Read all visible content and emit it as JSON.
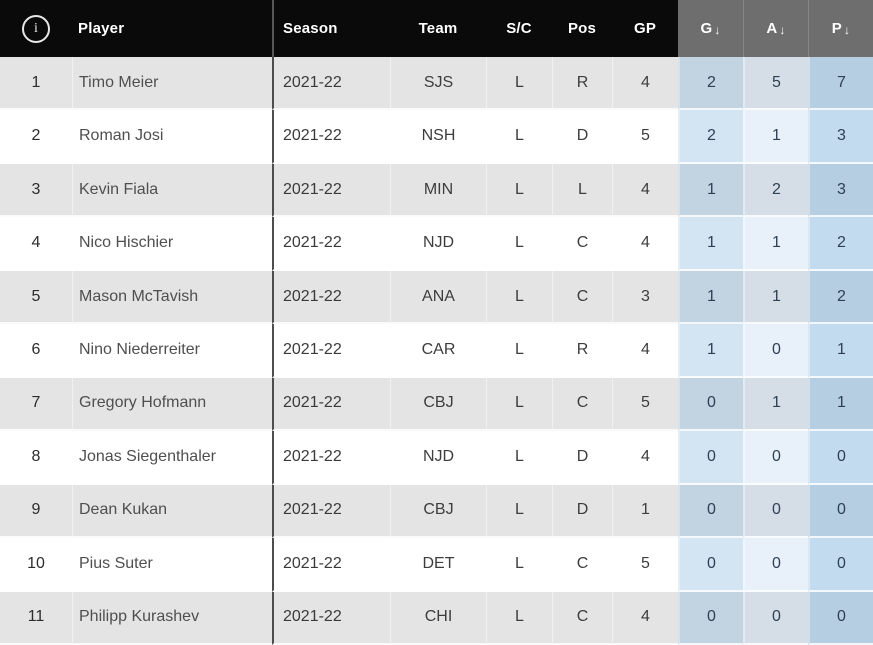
{
  "table": {
    "sort_arrow": "↓",
    "columns": [
      {
        "key": "rank",
        "label": ""
      },
      {
        "key": "player",
        "label": "Player"
      },
      {
        "key": "season",
        "label": "Season"
      },
      {
        "key": "team",
        "label": "Team"
      },
      {
        "key": "sc",
        "label": "S/C"
      },
      {
        "key": "pos",
        "label": "Pos"
      },
      {
        "key": "gp",
        "label": "GP"
      },
      {
        "key": "g",
        "label": "G",
        "sorted": true
      },
      {
        "key": "a",
        "label": "A",
        "sorted": true
      },
      {
        "key": "p",
        "label": "P",
        "sorted": true
      }
    ],
    "info_icon_glyph": "i",
    "rows": [
      {
        "rank": "1",
        "player": "Timo Meier",
        "season": "2021-22",
        "team": "SJS",
        "sc": "L",
        "pos": "R",
        "gp": "4",
        "g": "2",
        "a": "5",
        "p": "7"
      },
      {
        "rank": "2",
        "player": "Roman Josi",
        "season": "2021-22",
        "team": "NSH",
        "sc": "L",
        "pos": "D",
        "gp": "5",
        "g": "2",
        "a": "1",
        "p": "3"
      },
      {
        "rank": "3",
        "player": "Kevin Fiala",
        "season": "2021-22",
        "team": "MIN",
        "sc": "L",
        "pos": "L",
        "gp": "4",
        "g": "1",
        "a": "2",
        "p": "3"
      },
      {
        "rank": "4",
        "player": "Nico Hischier",
        "season": "2021-22",
        "team": "NJD",
        "sc": "L",
        "pos": "C",
        "gp": "4",
        "g": "1",
        "a": "1",
        "p": "2"
      },
      {
        "rank": "5",
        "player": "Mason McTavish",
        "season": "2021-22",
        "team": "ANA",
        "sc": "L",
        "pos": "C",
        "gp": "3",
        "g": "1",
        "a": "1",
        "p": "2"
      },
      {
        "rank": "6",
        "player": "Nino Niederreiter",
        "season": "2021-22",
        "team": "CAR",
        "sc": "L",
        "pos": "R",
        "gp": "4",
        "g": "1",
        "a": "0",
        "p": "1"
      },
      {
        "rank": "7",
        "player": "Gregory Hofmann",
        "season": "2021-22",
        "team": "CBJ",
        "sc": "L",
        "pos": "C",
        "gp": "5",
        "g": "0",
        "a": "1",
        "p": "1"
      },
      {
        "rank": "8",
        "player": "Jonas Siegenthaler",
        "season": "2021-22",
        "team": "NJD",
        "sc": "L",
        "pos": "D",
        "gp": "4",
        "g": "0",
        "a": "0",
        "p": "0"
      },
      {
        "rank": "9",
        "player": "Dean Kukan",
        "season": "2021-22",
        "team": "CBJ",
        "sc": "L",
        "pos": "D",
        "gp": "1",
        "g": "0",
        "a": "0",
        "p": "0"
      },
      {
        "rank": "10",
        "player": "Pius Suter",
        "season": "2021-22",
        "team": "DET",
        "sc": "L",
        "pos": "C",
        "gp": "5",
        "g": "0",
        "a": "0",
        "p": "0"
      },
      {
        "rank": "11",
        "player": "Philipp Kurashev",
        "season": "2021-22",
        "team": "CHI",
        "sc": "L",
        "pos": "C",
        "gp": "4",
        "g": "0",
        "a": "0",
        "p": "0"
      }
    ]
  },
  "colors": {
    "header_bg": "#0a0a0a",
    "sorted_header_bg": "#6e6e6e",
    "row_alt_bg": "#e4e4e4",
    "row_bg": "#ffffff",
    "column_divider": "#4d4d4d",
    "stat_tint_base": "#8cb9dc",
    "stat_text": "#2e4154"
  }
}
